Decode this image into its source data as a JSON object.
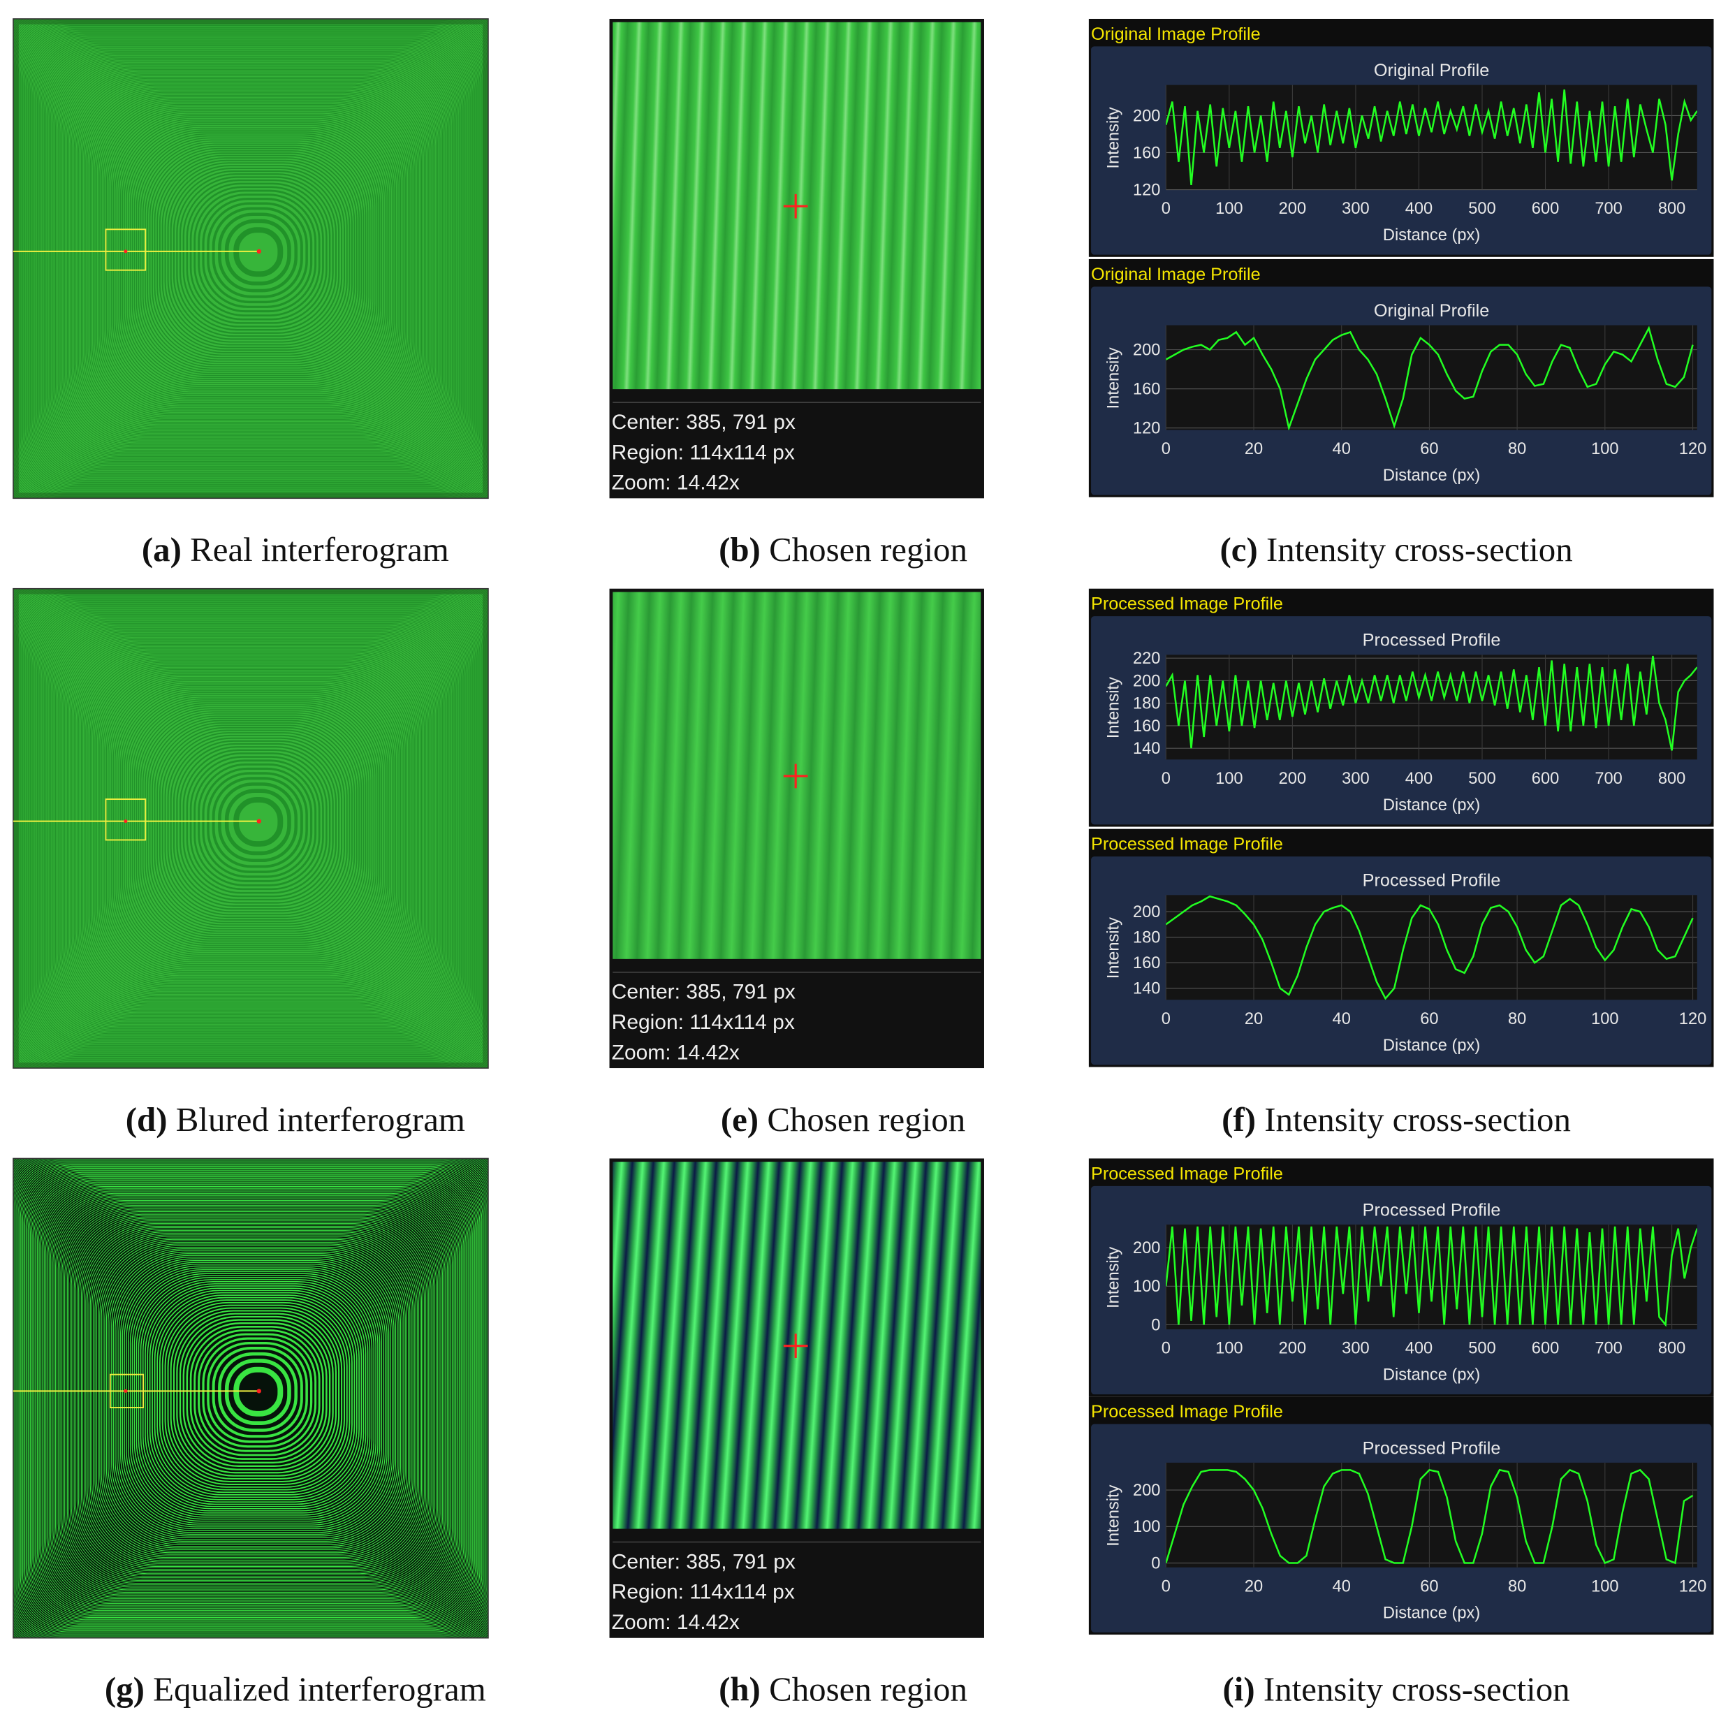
{
  "captions": [
    {
      "label": "(a)",
      "text": "Real interferogram"
    },
    {
      "label": "(b)",
      "text": "Chosen region"
    },
    {
      "label": "(c)",
      "text": "Intensity cross-section"
    },
    {
      "label": "(d)",
      "text": "Blured interferogram"
    },
    {
      "label": "(e)",
      "text": "Chosen region"
    },
    {
      "label": "(f)",
      "text": "Intensity cross-section"
    },
    {
      "label": "(g)",
      "text": "Equalized interferogram"
    },
    {
      "label": "(h)",
      "text": "Chosen region"
    },
    {
      "label": "(i)",
      "text": "Intensity cross-section"
    }
  ],
  "region_info": [
    {
      "center": "Center: 385, 791 px",
      "region": "Region: 114x114 px",
      "zoom": "Zoom: 14.42x"
    },
    {
      "center": "Center: 385, 791 px",
      "region": "Region: 114x114 px",
      "zoom": "Zoom: 14.42x"
    },
    {
      "center": "Center: 385, 791 px",
      "region": "Region: 114x114 px",
      "zoom": "Zoom: 14.42x"
    }
  ],
  "chart_data": [
    {
      "type": "line",
      "header": "Original Image Profile",
      "title": "Original Profile",
      "x_label": "Distance (px)",
      "y_label": "Intensity",
      "xlim": [
        0,
        840
      ],
      "ylim": [
        120,
        233
      ],
      "xticks": [
        0,
        100,
        200,
        300,
        400,
        500,
        600,
        700,
        800
      ],
      "yticks": [
        120,
        160,
        200
      ],
      "grid": true,
      "x": [
        0,
        10,
        20,
        30,
        40,
        50,
        60,
        70,
        80,
        90,
        100,
        110,
        120,
        130,
        140,
        150,
        160,
        170,
        180,
        190,
        200,
        210,
        220,
        230,
        240,
        250,
        260,
        270,
        280,
        290,
        300,
        310,
        320,
        330,
        340,
        350,
        360,
        370,
        380,
        390,
        400,
        410,
        420,
        430,
        440,
        450,
        460,
        470,
        480,
        490,
        500,
        510,
        520,
        530,
        540,
        550,
        560,
        570,
        580,
        590,
        600,
        610,
        620,
        630,
        640,
        650,
        660,
        670,
        680,
        690,
        700,
        710,
        720,
        730,
        740,
        750,
        760,
        770,
        780,
        790,
        800,
        810,
        820,
        830,
        840
      ],
      "series": [
        {
          "color": "#22ff22",
          "values": [
            190,
            215,
            150,
            210,
            125,
            205,
            160,
            212,
            145,
            208,
            165,
            205,
            150,
            210,
            160,
            200,
            150,
            215,
            165,
            205,
            155,
            210,
            170,
            200,
            160,
            212,
            168,
            205,
            170,
            208,
            165,
            200,
            175,
            210,
            172,
            205,
            178,
            215,
            180,
            212,
            178,
            208,
            182,
            215,
            180,
            205,
            185,
            210,
            178,
            212,
            182,
            205,
            175,
            215,
            178,
            208,
            170,
            212,
            165,
            225,
            160,
            218,
            150,
            228,
            148,
            215,
            145,
            205,
            150,
            215,
            145,
            210,
            150,
            218,
            155,
            212,
            185,
            160,
            218,
            190,
            130,
            180,
            215,
            195,
            205
          ]
        }
      ]
    },
    {
      "type": "line",
      "header": "Original Image Profile",
      "title": "Original Profile",
      "x_label": "Distance (px)",
      "y_label": "Intensity",
      "xlim": [
        0,
        121
      ],
      "ylim": [
        118,
        225
      ],
      "xticks": [
        0,
        20,
        40,
        60,
        80,
        100,
        120
      ],
      "yticks": [
        120,
        160,
        200
      ],
      "grid": true,
      "x": [
        0,
        2,
        4,
        6,
        8,
        10,
        12,
        14,
        16,
        18,
        20,
        22,
        24,
        26,
        28,
        30,
        32,
        34,
        36,
        38,
        40,
        42,
        44,
        46,
        48,
        50,
        52,
        54,
        56,
        58,
        60,
        62,
        64,
        66,
        68,
        70,
        72,
        74,
        76,
        78,
        80,
        82,
        84,
        86,
        88,
        90,
        92,
        94,
        96,
        98,
        100,
        102,
        104,
        106,
        108,
        110,
        112,
        114,
        116,
        118,
        120
      ],
      "series": [
        {
          "color": "#22ff22",
          "values": [
            190,
            195,
            200,
            203,
            205,
            200,
            210,
            212,
            218,
            205,
            212,
            195,
            180,
            160,
            120,
            145,
            170,
            190,
            200,
            210,
            215,
            218,
            200,
            190,
            175,
            150,
            122,
            150,
            195,
            212,
            205,
            195,
            175,
            158,
            150,
            152,
            178,
            198,
            205,
            205,
            195,
            175,
            163,
            165,
            188,
            205,
            202,
            180,
            162,
            165,
            185,
            198,
            195,
            188,
            205,
            222,
            190,
            165,
            162,
            172,
            205
          ]
        }
      ]
    },
    {
      "type": "line",
      "header": "Processed Image Profile",
      "title": "Processed Profile",
      "x_label": "Distance (px)",
      "y_label": "Intensity",
      "xlim": [
        0,
        840
      ],
      "ylim": [
        130,
        223
      ],
      "xticks": [
        0,
        100,
        200,
        300,
        400,
        500,
        600,
        700,
        800
      ],
      "yticks": [
        140,
        160,
        180,
        200,
        220
      ],
      "grid": true,
      "x": [
        0,
        10,
        20,
        30,
        40,
        50,
        60,
        70,
        80,
        90,
        100,
        110,
        120,
        130,
        140,
        150,
        160,
        170,
        180,
        190,
        200,
        210,
        220,
        230,
        240,
        250,
        260,
        270,
        280,
        290,
        300,
        310,
        320,
        330,
        340,
        350,
        360,
        370,
        380,
        390,
        400,
        410,
        420,
        430,
        440,
        450,
        460,
        470,
        480,
        490,
        500,
        510,
        520,
        530,
        540,
        550,
        560,
        570,
        580,
        590,
        600,
        610,
        620,
        630,
        640,
        650,
        660,
        670,
        680,
        690,
        700,
        710,
        720,
        730,
        740,
        750,
        760,
        770,
        780,
        790,
        800,
        810,
        820,
        830,
        840
      ],
      "series": [
        {
          "color": "#22ff22",
          "values": [
            195,
            205,
            160,
            200,
            140,
            205,
            150,
            205,
            160,
            200,
            155,
            205,
            160,
            200,
            158,
            200,
            165,
            198,
            165,
            200,
            168,
            198,
            170,
            200,
            172,
            202,
            175,
            200,
            178,
            205,
            180,
            200,
            180,
            205,
            182,
            205,
            180,
            205,
            182,
            208,
            185,
            205,
            182,
            208,
            185,
            205,
            182,
            208,
            180,
            208,
            182,
            205,
            178,
            208,
            175,
            210,
            172,
            205,
            165,
            212,
            160,
            218,
            155,
            215,
            155,
            212,
            160,
            215,
            158,
            212,
            160,
            210,
            165,
            215,
            160,
            208,
            170,
            222,
            180,
            165,
            138,
            190,
            200,
            205,
            212
          ]
        }
      ]
    },
    {
      "type": "line",
      "header": "Processed Image Profile",
      "title": "Processed Profile",
      "x_label": "Distance (px)",
      "y_label": "Intensity",
      "xlim": [
        0,
        121
      ],
      "ylim": [
        131,
        213
      ],
      "xticks": [
        0,
        20,
        40,
        60,
        80,
        100,
        120
      ],
      "yticks": [
        140,
        160,
        180,
        200
      ],
      "grid": true,
      "x": [
        0,
        2,
        4,
        6,
        8,
        10,
        12,
        14,
        16,
        18,
        20,
        22,
        24,
        26,
        28,
        30,
        32,
        34,
        36,
        38,
        40,
        42,
        44,
        46,
        48,
        50,
        52,
        54,
        56,
        58,
        60,
        62,
        64,
        66,
        68,
        70,
        72,
        74,
        76,
        78,
        80,
        82,
        84,
        86,
        88,
        90,
        92,
        94,
        96,
        98,
        100,
        102,
        104,
        106,
        108,
        110,
        112,
        114,
        116,
        118,
        120
      ],
      "series": [
        {
          "color": "#22ff22",
          "values": [
            190,
            195,
            200,
            205,
            208,
            212,
            210,
            208,
            205,
            198,
            190,
            178,
            160,
            140,
            135,
            150,
            172,
            190,
            200,
            203,
            205,
            200,
            185,
            165,
            145,
            132,
            140,
            170,
            195,
            205,
            202,
            190,
            170,
            155,
            152,
            165,
            190,
            203,
            205,
            200,
            188,
            170,
            160,
            165,
            185,
            205,
            210,
            205,
            190,
            172,
            162,
            170,
            188,
            202,
            200,
            188,
            170,
            163,
            165,
            180,
            195
          ]
        }
      ]
    },
    {
      "type": "line",
      "header": "Processed Image Profile",
      "title": "Processed Profile",
      "x_label": "Distance (px)",
      "y_label": "Intensity",
      "xlim": [
        0,
        840
      ],
      "ylim": [
        -12,
        260
      ],
      "xticks": [
        0,
        100,
        200,
        300,
        400,
        500,
        600,
        700,
        800
      ],
      "yticks": [
        0,
        100,
        200
      ],
      "grid": true,
      "x": [
        0,
        10,
        20,
        30,
        40,
        50,
        60,
        70,
        80,
        90,
        100,
        110,
        120,
        130,
        140,
        150,
        160,
        170,
        180,
        190,
        200,
        210,
        220,
        230,
        240,
        250,
        260,
        270,
        280,
        290,
        300,
        310,
        320,
        330,
        340,
        350,
        360,
        370,
        380,
        390,
        400,
        410,
        420,
        430,
        440,
        450,
        460,
        470,
        480,
        490,
        500,
        510,
        520,
        530,
        540,
        550,
        560,
        570,
        580,
        590,
        600,
        610,
        620,
        630,
        640,
        650,
        660,
        670,
        680,
        690,
        700,
        710,
        720,
        730,
        740,
        750,
        760,
        770,
        780,
        790,
        800,
        810,
        820,
        830,
        840
      ],
      "series": [
        {
          "color": "#22ff22",
          "values": [
            100,
            255,
            0,
            250,
            10,
            255,
            0,
            255,
            20,
            255,
            0,
            255,
            50,
            255,
            0,
            250,
            30,
            255,
            0,
            255,
            60,
            255,
            0,
            255,
            40,
            255,
            0,
            255,
            80,
            255,
            0,
            255,
            60,
            255,
            100,
            255,
            20,
            255,
            80,
            255,
            30,
            255,
            60,
            255,
            0,
            255,
            40,
            255,
            0,
            255,
            20,
            255,
            0,
            255,
            0,
            255,
            0,
            255,
            0,
            255,
            0,
            255,
            0,
            255,
            0,
            250,
            0,
            240,
            0,
            250,
            0,
            255,
            0,
            255,
            0,
            250,
            60,
            255,
            20,
            0,
            180,
            250,
            120,
            200,
            250
          ]
        }
      ]
    },
    {
      "type": "line",
      "header": "Processed Image Profile",
      "title": "Processed Profile",
      "x_label": "Distance (px)",
      "y_label": "Intensity",
      "xlim": [
        0,
        121
      ],
      "ylim": [
        -12,
        275
      ],
      "xticks": [
        0,
        20,
        40,
        60,
        80,
        100,
        120
      ],
      "yticks": [
        0,
        100,
        200
      ],
      "grid": true,
      "x": [
        0,
        2,
        4,
        6,
        8,
        10,
        12,
        14,
        16,
        18,
        20,
        22,
        24,
        26,
        28,
        30,
        32,
        34,
        36,
        38,
        40,
        42,
        44,
        46,
        48,
        50,
        52,
        54,
        56,
        58,
        60,
        62,
        64,
        66,
        68,
        70,
        72,
        74,
        76,
        78,
        80,
        82,
        84,
        86,
        88,
        90,
        92,
        94,
        96,
        98,
        100,
        102,
        104,
        106,
        108,
        110,
        112,
        114,
        116,
        118,
        120
      ],
      "series": [
        {
          "color": "#22ff22",
          "values": [
            0,
            80,
            160,
            210,
            250,
            255,
            255,
            255,
            250,
            230,
            200,
            150,
            80,
            20,
            0,
            0,
            20,
            120,
            210,
            245,
            255,
            255,
            245,
            190,
            100,
            10,
            0,
            0,
            100,
            230,
            255,
            250,
            180,
            60,
            0,
            0,
            80,
            210,
            255,
            250,
            180,
            60,
            0,
            0,
            100,
            230,
            255,
            245,
            170,
            50,
            0,
            10,
            140,
            245,
            255,
            230,
            120,
            10,
            0,
            170,
            185
          ]
        }
      ]
    }
  ]
}
